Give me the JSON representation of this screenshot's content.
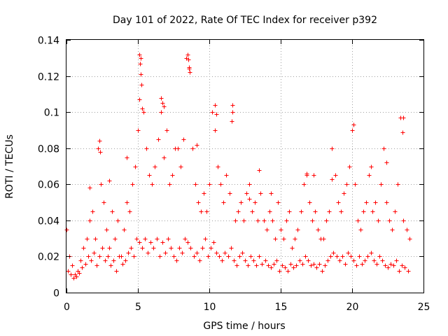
{
  "chart_data": {
    "type": "scatter",
    "title": "Day 101 of 2022, Rate Of TEC Index for receiver p392",
    "xlabel": "GPS time / hours",
    "ylabel": "ROTI / TECUs",
    "xlim": [
      0,
      25
    ],
    "ylim": [
      0,
      0.14
    ],
    "xticks": [
      0,
      5,
      10,
      15,
      20,
      25
    ],
    "xtick_labels": [
      "0",
      "5",
      "10",
      "15",
      "20",
      "25"
    ],
    "yticks": [
      0,
      0.02,
      0.04,
      0.06,
      0.08,
      0.1,
      0.12,
      0.14
    ],
    "ytick_labels": [
      "0",
      "0.02",
      "0.04",
      "0.06",
      "0.08",
      "0.1",
      "0.12",
      "0.14"
    ],
    "grid": true,
    "marker": "+",
    "color": "#ff0000",
    "series": [
      {
        "name": "ROTI",
        "x": [
          0.0,
          0.2,
          0.4,
          0.6,
          0.8,
          1.0,
          1.2,
          1.4,
          1.6,
          1.8,
          2.0,
          2.2,
          2.4,
          2.6,
          2.8,
          3.0,
          3.2,
          3.4,
          3.6,
          3.8,
          4.0,
          4.2,
          4.4,
          4.6,
          4.8,
          5.0,
          5.2,
          5.4,
          5.6,
          5.8,
          6.0,
          6.2,
          6.4,
          6.6,
          6.8,
          7.0,
          7.2,
          7.4,
          7.6,
          7.8,
          8.0,
          8.2,
          8.4,
          8.6,
          8.8,
          9.0,
          9.2,
          9.4,
          9.6,
          9.8,
          10.0,
          10.2,
          10.4,
          10.6,
          10.8,
          11.0,
          11.2,
          11.4,
          11.6,
          11.8,
          12.0,
          12.2,
          12.4,
          12.6,
          12.8,
          13.0,
          13.2,
          13.4,
          13.6,
          13.8,
          14.0,
          14.2,
          14.4,
          14.6,
          14.8,
          15.0,
          15.2,
          15.4,
          15.6,
          15.8,
          16.0,
          16.2,
          16.4,
          16.6,
          16.8,
          17.0,
          17.2,
          17.4,
          17.6,
          17.8,
          18.0,
          18.2,
          18.4,
          18.6,
          18.8,
          19.0,
          19.2,
          19.4,
          19.6,
          19.8,
          20.0,
          20.2,
          20.4,
          20.6,
          20.8,
          21.0,
          21.2,
          21.4,
          21.6,
          21.8,
          22.0,
          22.2,
          22.4,
          22.6,
          22.8,
          23.0,
          23.2,
          23.4,
          23.6,
          23.8,
          24.0,
          0.1,
          0.3,
          0.5,
          0.7,
          0.9,
          1.1,
          1.3,
          1.5,
          1.7,
          1.9,
          2.1,
          2.3,
          2.5,
          2.7,
          2.9,
          3.1,
          3.3,
          3.5,
          3.7,
          3.9,
          4.1,
          4.3,
          4.5,
          4.7,
          4.9,
          5.1,
          5.3,
          5.5,
          5.7,
          5.9,
          6.1,
          6.3,
          6.5,
          6.7,
          6.9,
          7.1,
          7.3,
          7.5,
          7.7,
          7.9,
          8.1,
          8.3,
          8.5,
          8.7,
          8.9,
          9.1,
          9.3,
          9.5,
          9.7,
          9.9,
          10.1,
          10.3,
          10.5,
          10.7,
          10.9,
          11.1,
          11.3,
          11.5,
          11.7,
          11.9,
          12.1,
          12.3,
          12.5,
          12.7,
          12.9,
          13.1,
          13.3,
          13.5,
          13.7,
          13.9,
          14.1,
          14.3,
          14.5,
          14.7,
          14.9,
          15.1,
          15.3,
          15.5,
          15.7,
          15.9,
          16.1,
          16.3,
          16.5,
          16.7,
          16.9,
          17.1,
          17.3,
          17.5,
          17.7,
          17.9,
          18.1,
          18.3,
          18.5,
          18.7,
          18.9,
          19.1,
          19.3,
          19.5,
          19.7,
          19.9,
          20.1,
          20.3,
          20.5,
          20.7,
          20.9,
          21.1,
          21.3,
          21.5,
          21.7,
          21.9,
          22.1,
          22.3,
          22.5,
          22.7,
          22.9,
          23.1,
          23.3,
          23.5,
          23.7,
          23.9,
          5.1,
          5.15,
          5.2,
          5.1,
          5.25,
          5.3,
          6.6,
          6.7,
          6.8,
          8.5,
          8.55,
          8.6,
          8.65,
          10.5,
          10.4,
          11.6,
          11.55,
          23.6,
          23.55,
          20.1,
          2.3,
          2.35,
          1.6,
          4.2,
          9.1,
          13.5,
          17.3,
          18.6,
          21.3,
          22.4,
          3.0,
          14.3,
          16.8,
          19.8,
          12.8
        ],
        "y": [
          0.035,
          0.02,
          0.015,
          0.01,
          0.012,
          0.018,
          0.025,
          0.03,
          0.04,
          0.045,
          0.03,
          0.08,
          0.06,
          0.05,
          0.035,
          0.025,
          0.045,
          0.03,
          0.04,
          0.02,
          0.035,
          0.05,
          0.045,
          0.06,
          0.07,
          0.09,
          0.13,
          0.1,
          0.08,
          0.065,
          0.06,
          0.07,
          0.085,
          0.1,
          0.075,
          0.09,
          0.06,
          0.065,
          0.08,
          0.08,
          0.07,
          0.085,
          0.13,
          0.125,
          0.08,
          0.06,
          0.05,
          0.045,
          0.055,
          0.045,
          0.06,
          0.1,
          0.09,
          0.07,
          0.06,
          0.05,
          0.065,
          0.055,
          0.1,
          0.04,
          0.045,
          0.05,
          0.04,
          0.055,
          0.06,
          0.045,
          0.05,
          0.04,
          0.055,
          0.04,
          0.035,
          0.045,
          0.04,
          0.03,
          0.05,
          0.035,
          0.03,
          0.04,
          0.045,
          0.025,
          0.03,
          0.035,
          0.045,
          0.06,
          0.065,
          0.05,
          0.04,
          0.045,
          0.035,
          0.03,
          0.03,
          0.04,
          0.045,
          0.08,
          0.065,
          0.05,
          0.045,
          0.055,
          0.06,
          0.07,
          0.09,
          0.06,
          0.04,
          0.035,
          0.045,
          0.05,
          0.065,
          0.045,
          0.05,
          0.04,
          0.06,
          0.08,
          0.05,
          0.04,
          0.035,
          0.045,
          0.06,
          0.097,
          0.04,
          0.035,
          0.03,
          0.012,
          0.01,
          0.008,
          0.009,
          0.011,
          0.014,
          0.016,
          0.02,
          0.018,
          0.022,
          0.015,
          0.02,
          0.025,
          0.018,
          0.02,
          0.015,
          0.018,
          0.012,
          0.02,
          0.016,
          0.018,
          0.022,
          0.025,
          0.02,
          0.03,
          0.028,
          0.025,
          0.03,
          0.022,
          0.028,
          0.025,
          0.03,
          0.02,
          0.028,
          0.022,
          0.03,
          0.025,
          0.02,
          0.018,
          0.025,
          0.022,
          0.03,
          0.028,
          0.025,
          0.02,
          0.022,
          0.018,
          0.025,
          0.03,
          0.02,
          0.025,
          0.028,
          0.022,
          0.02,
          0.018,
          0.022,
          0.02,
          0.025,
          0.018,
          0.015,
          0.02,
          0.022,
          0.018,
          0.015,
          0.02,
          0.018,
          0.015,
          0.02,
          0.016,
          0.018,
          0.015,
          0.014,
          0.016,
          0.018,
          0.012,
          0.015,
          0.014,
          0.012,
          0.016,
          0.014,
          0.015,
          0.018,
          0.016,
          0.02,
          0.018,
          0.015,
          0.016,
          0.014,
          0.016,
          0.012,
          0.015,
          0.018,
          0.02,
          0.022,
          0.02,
          0.018,
          0.02,
          0.016,
          0.022,
          0.02,
          0.018,
          0.015,
          0.02,
          0.016,
          0.018,
          0.02,
          0.022,
          0.018,
          0.016,
          0.02,
          0.018,
          0.015,
          0.014,
          0.016,
          0.015,
          0.018,
          0.012,
          0.015,
          0.014,
          0.012,
          0.132,
          0.127,
          0.121,
          0.107,
          0.115,
          0.102,
          0.108,
          0.105,
          0.103,
          0.132,
          0.129,
          0.124,
          0.122,
          0.099,
          0.104,
          0.104,
          0.095,
          0.097,
          0.089,
          0.093,
          0.084,
          0.078,
          0.058,
          0.075,
          0.082,
          0.068,
          0.065,
          0.063,
          0.07,
          0.072,
          0.062,
          0.055,
          0.066,
          0.07,
          0.052
        ]
      }
    ]
  }
}
